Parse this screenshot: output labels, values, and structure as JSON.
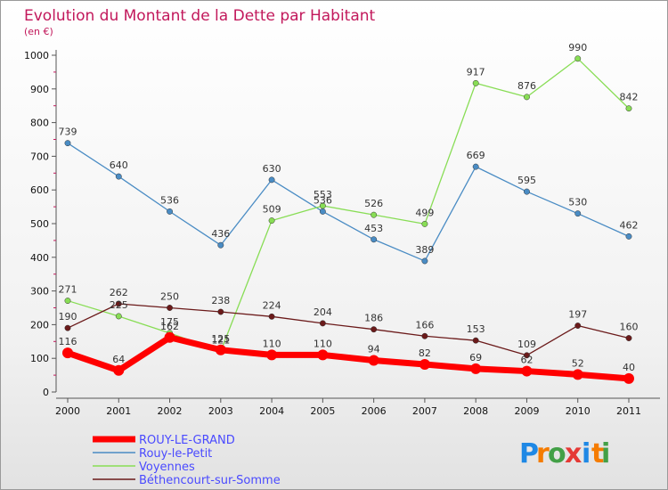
{
  "chart_data": {
    "type": "line",
    "title": "Evolution du Montant de la Dette par Habitant",
    "subtitle": "(en €)",
    "xlabel": "",
    "ylabel": "",
    "ylim": [
      0,
      1000
    ],
    "yticks": [
      0,
      100,
      200,
      300,
      400,
      500,
      600,
      700,
      800,
      900,
      1000
    ],
    "categories": [
      "2000",
      "2001",
      "2002",
      "2003",
      "2004",
      "2005",
      "2006",
      "2007",
      "2008",
      "2009",
      "2010",
      "2011"
    ],
    "grid": false,
    "legend_position": "bottom-left",
    "series": [
      {
        "name": "ROUY-LE-GRAND",
        "color": "#ff0000",
        "values": [
          116,
          64,
          162,
          125,
          110,
          110,
          94,
          82,
          69,
          62,
          52,
          40
        ]
      },
      {
        "name": "Rouy-le-Petit",
        "color": "#4a8cc4",
        "values": [
          739,
          640,
          536,
          436,
          630,
          536,
          453,
          389,
          669,
          595,
          530,
          462
        ]
      },
      {
        "name": "Voyennes",
        "color": "#88dd55",
        "values": [
          271,
          225,
          175,
          121,
          509,
          553,
          526,
          499,
          917,
          876,
          990,
          842
        ]
      },
      {
        "name": "Béthencourt-sur-Somme",
        "color": "#6b1a1a",
        "values": [
          190,
          262,
          250,
          238,
          224,
          204,
          186,
          166,
          153,
          109,
          197,
          160
        ]
      }
    ]
  },
  "brand": {
    "text": "Proxiti",
    "letters": [
      "P",
      "r",
      "o",
      "x",
      "i",
      "t",
      "i"
    ]
  }
}
